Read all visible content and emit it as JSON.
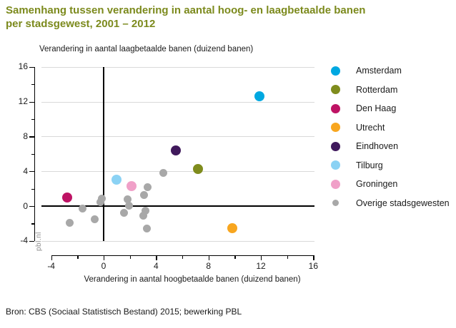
{
  "title": {
    "line1": "Samenhang tussen verandering in aantal hoog- en laagbetaalde banen",
    "line2": "per stadsgewest, 2001 – 2012"
  },
  "watermark": "pbl.nl",
  "source": "Bron: CBS (Sociaal Statistisch Bestand) 2015; bewerking PBL",
  "colors": {
    "title": "#7C8A1D",
    "text": "#1A1A1A",
    "grid": "#D9D9D9",
    "axis": "#000000",
    "watermark": "#8C8C8C"
  },
  "chart_data": {
    "type": "scatter",
    "title": "Samenhang tussen verandering in aantal hoog- en laagbetaalde banen per stadsgewest, 2001 – 2012",
    "xlabel": "Verandering in aantal hoogbetaalde banen (duizend banen)",
    "ylabel": "Verandering in aantal laagbetaalde banen (duizend banen)",
    "xlim": [
      -4,
      16
    ],
    "ylim": [
      -4,
      16
    ],
    "x_ticks_major": [
      -4,
      0,
      4,
      8,
      12,
      16
    ],
    "x_ticks_minor": [
      -2,
      2,
      6,
      10,
      14
    ],
    "y_ticks_major": [
      16,
      12,
      8,
      4,
      0,
      -4
    ],
    "y_ticks_minor": [
      14,
      10,
      6,
      2,
      -2
    ],
    "grid": "horizontal-only",
    "zero_lines": true,
    "legend_position": "right",
    "series": [
      {
        "name": "Amsterdam",
        "color": "#00A8E1",
        "points": [
          [
            11.9,
            12.6
          ]
        ]
      },
      {
        "name": "Rotterdam",
        "color": "#7F8C1D",
        "points": [
          [
            7.2,
            4.3
          ]
        ]
      },
      {
        "name": "Den Haag",
        "color": "#BE1364",
        "points": [
          [
            -2.8,
            1.0
          ]
        ]
      },
      {
        "name": "Utrecht",
        "color": "#F8A61F",
        "points": [
          [
            9.8,
            -2.5
          ]
        ]
      },
      {
        "name": "Eindhoven",
        "color": "#40195C",
        "points": [
          [
            5.5,
            6.4
          ]
        ]
      },
      {
        "name": "Tilburg",
        "color": "#8BD2F4",
        "points": [
          [
            1.0,
            3.0
          ]
        ]
      },
      {
        "name": "Groningen",
        "color": "#F0A0C8",
        "points": [
          [
            2.1,
            2.3
          ]
        ]
      },
      {
        "name": "Overige stadsgewesten",
        "color": "#A8A8A8",
        "points": [
          [
            -2.6,
            -1.9
          ],
          [
            -1.6,
            -0.25
          ],
          [
            -0.7,
            -1.5
          ],
          [
            -0.25,
            0.45
          ],
          [
            -0.15,
            0.9
          ],
          [
            1.55,
            -0.75
          ],
          [
            1.85,
            0.75
          ],
          [
            1.95,
            0.05
          ],
          [
            3.05,
            -1.1
          ],
          [
            3.2,
            -0.5
          ],
          [
            3.1,
            1.25
          ],
          [
            3.35,
            2.2
          ],
          [
            3.3,
            -2.6
          ],
          [
            4.55,
            3.8
          ]
        ]
      }
    ]
  }
}
